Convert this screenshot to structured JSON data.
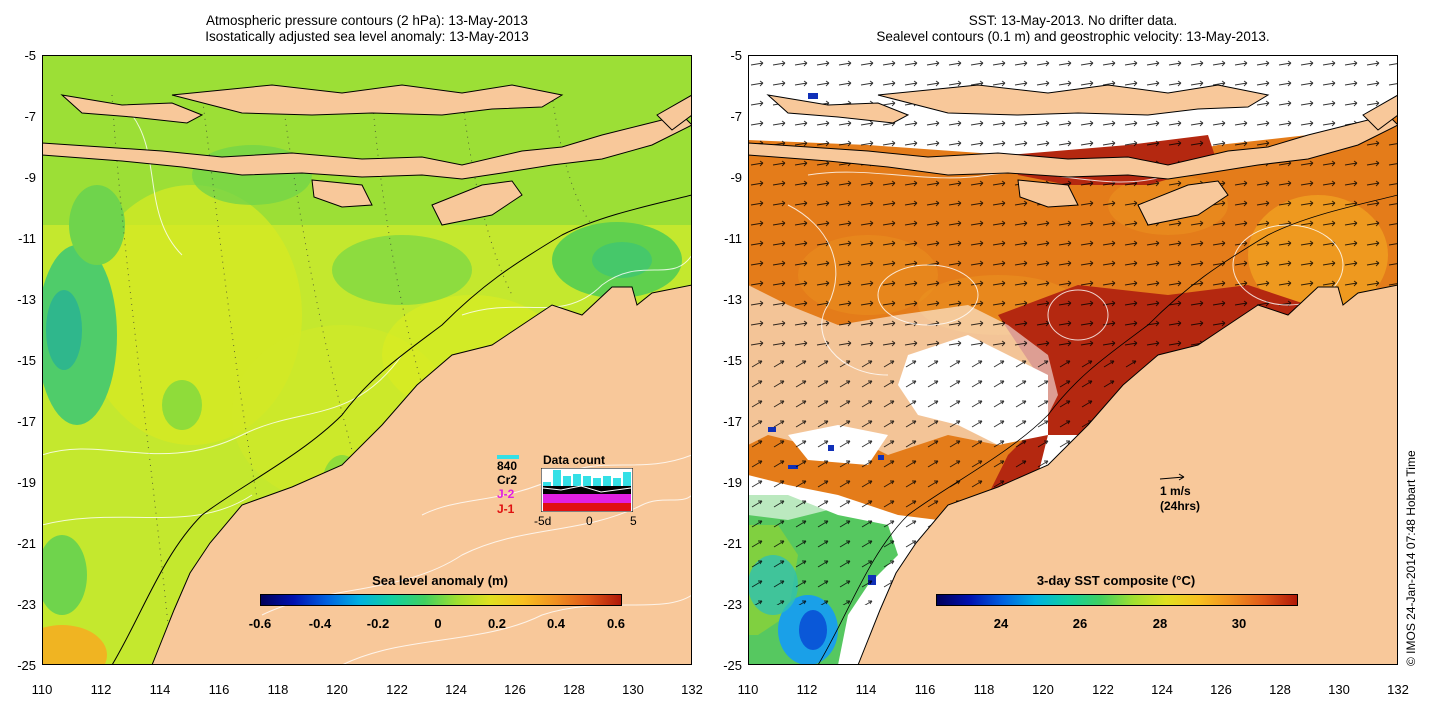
{
  "left_panel": {
    "title_line1": "Atmospheric pressure contours (2 hPa): 13-May-2013",
    "title_line2": "Isostatically adjusted sea level anomaly: 13-May-2013",
    "colorbar_title": "Sea level anomaly (m)",
    "colorbar_ticks": [
      "-0.6",
      "-0.4",
      "-0.2",
      "0",
      "0.2",
      "0.4",
      "0.6"
    ],
    "data_count": {
      "title": "Data count",
      "satellites": [
        "840",
        "Cr2",
        "J-2",
        "J-1"
      ],
      "x_ticks": [
        "-5d",
        "0",
        "5"
      ]
    }
  },
  "right_panel": {
    "title_line1": "SST: 13-May-2013. No drifter data.",
    "title_line2": "Sealevel contours (0.1 m) and geostrophic velocity: 13-May-2013.",
    "colorbar_title": "3-day SST composite (°C)",
    "colorbar_ticks": [
      "24",
      "26",
      "28",
      "30"
    ],
    "velocity_key_line1": "1 m/s",
    "velocity_key_line2": "(24hrs)"
  },
  "axes": {
    "y_ticks": [
      "-5",
      "-7",
      "-9",
      "-11",
      "-13",
      "-15",
      "-17",
      "-19",
      "-21",
      "-23",
      "-25"
    ],
    "x_ticks": [
      "110",
      "112",
      "114",
      "116",
      "118",
      "120",
      "122",
      "124",
      "126",
      "128",
      "130",
      "132"
    ]
  },
  "credit": "© IMOS 24-Jan-2014 07:48 Hobart Time",
  "colors": {
    "land": "#f8c89a",
    "ocean_sla": "#c2e832",
    "sst_warm": "#e27a18",
    "sst_hot": "#b32610",
    "cloud": "#ffffff"
  }
}
